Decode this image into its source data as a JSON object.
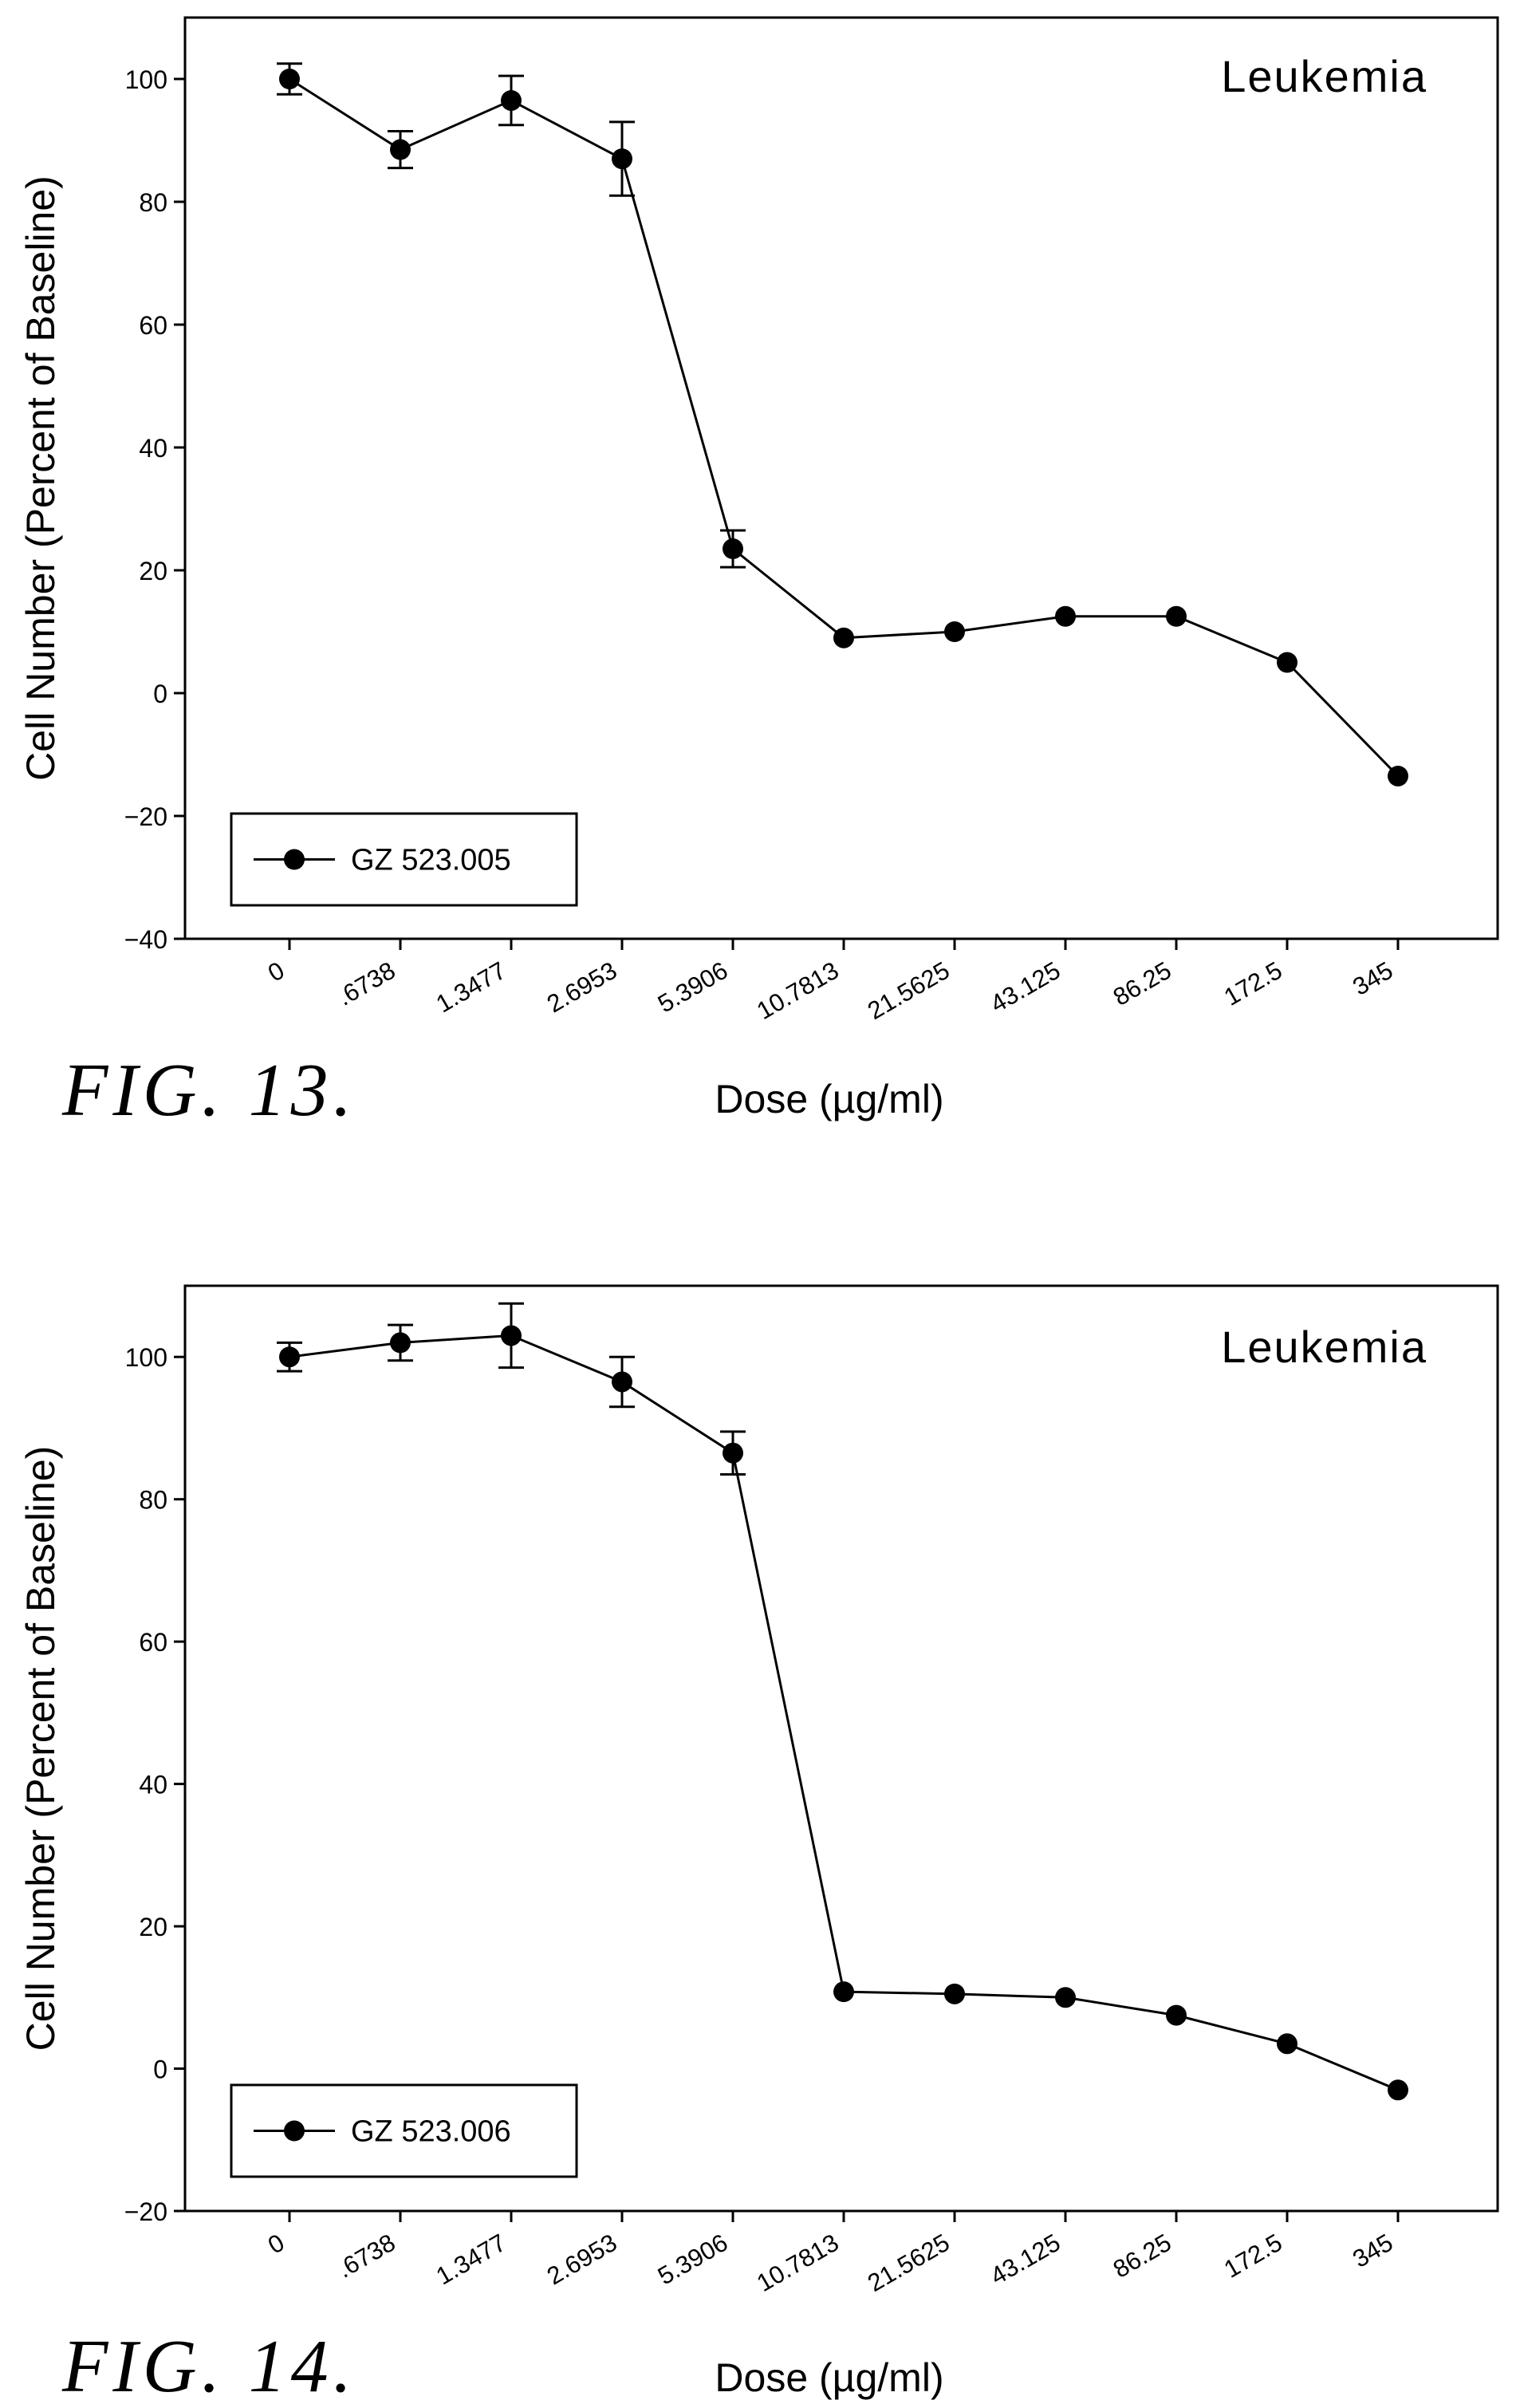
{
  "chart_data": [
    {
      "type": "line",
      "figure_label": "FIG. 13.",
      "annotation": "Leukemia",
      "xlabel": "Dose (µg/ml)",
      "ylabel": "Cell Number (Percent of Baseline)",
      "ylim": [
        -40,
        110
      ],
      "yticks": [
        -40,
        -20,
        0,
        20,
        40,
        60,
        80,
        100
      ],
      "categories": [
        "0",
        ".6738",
        "1.3477",
        "2.6953",
        "5.3906",
        "10.7813",
        "21.5625",
        "43.125",
        "86.25",
        "172.5",
        "345"
      ],
      "grid": false,
      "legend_position": "bottom-left",
      "series": [
        {
          "name": "GZ 523.005",
          "values": [
            100,
            88.5,
            96.5,
            87,
            23.5,
            9,
            10,
            12.5,
            12.5,
            5,
            -13.5
          ],
          "error": [
            2.5,
            3,
            4,
            6,
            3,
            null,
            null,
            null,
            null,
            null,
            null
          ]
        }
      ]
    },
    {
      "type": "line",
      "figure_label": "FIG. 14.",
      "annotation": "Leukemia",
      "xlabel": "Dose (µg/ml)",
      "ylabel": "Cell Number (Percent of Baseline)",
      "ylim": [
        -20,
        110
      ],
      "yticks": [
        -20,
        0,
        20,
        40,
        60,
        80,
        100
      ],
      "categories": [
        "0",
        ".6738",
        "1.3477",
        "2.6953",
        "5.3906",
        "10.7813",
        "21.5625",
        "43.125",
        "86.25",
        "172.5",
        "345"
      ],
      "grid": false,
      "legend_position": "bottom-left",
      "series": [
        {
          "name": "GZ 523.006",
          "values": [
            100,
            102,
            103,
            96.5,
            86.5,
            10.8,
            10.5,
            10,
            7.5,
            3.5,
            -3
          ],
          "error": [
            2,
            2.5,
            4.5,
            3.5,
            3,
            null,
            null,
            null,
            null,
            null,
            null
          ]
        }
      ]
    }
  ]
}
